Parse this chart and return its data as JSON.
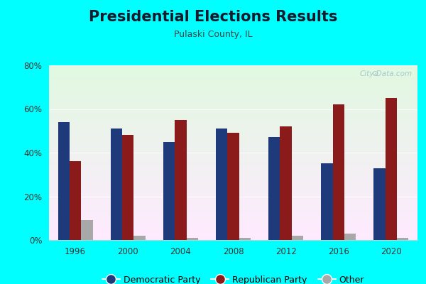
{
  "title": "Presidential Elections Results",
  "subtitle": "Pulaski County, IL",
  "years": [
    1996,
    2000,
    2004,
    2008,
    2012,
    2016,
    2020
  ],
  "democratic": [
    54,
    51,
    45,
    51,
    47,
    35,
    33
  ],
  "republican": [
    36,
    48,
    55,
    49,
    52,
    62,
    65
  ],
  "other": [
    9,
    2,
    1,
    1,
    2,
    3,
    1
  ],
  "dem_color": "#1f3a7a",
  "rep_color": "#8b1a1a",
  "other_color": "#a8a8a8",
  "bg_outer": "#00ffff",
  "ylim": [
    0,
    80
  ],
  "yticks": [
    0,
    20,
    40,
    60,
    80
  ],
  "ytick_labels": [
    "0%",
    "20%",
    "40%",
    "60%",
    "80%"
  ],
  "bar_width": 0.22,
  "title_fontsize": 15,
  "subtitle_fontsize": 9,
  "tick_fontsize": 8.5,
  "legend_fontsize": 9,
  "watermark": "City-Data.com"
}
